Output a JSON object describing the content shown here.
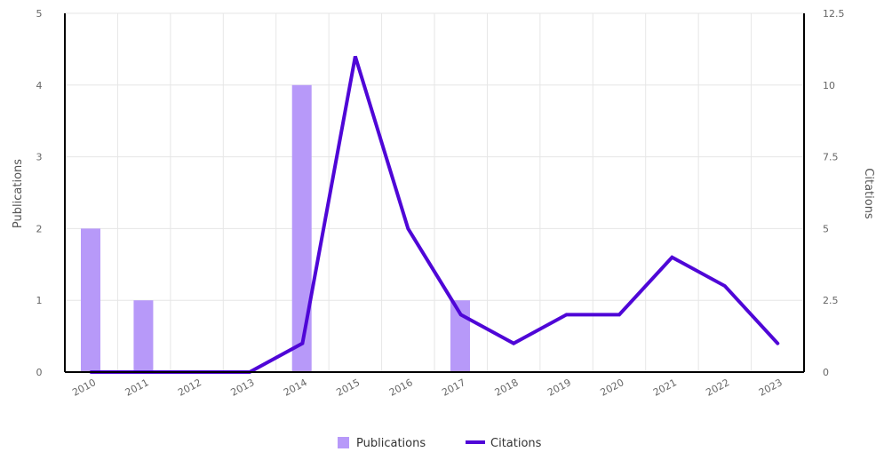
{
  "chart_data": {
    "type": "bar+line",
    "categories": [
      "2010",
      "2011",
      "2012",
      "2013",
      "2014",
      "2015",
      "2016",
      "2017",
      "2018",
      "2019",
      "2020",
      "2021",
      "2022",
      "2023"
    ],
    "series": [
      {
        "name": "Publications",
        "type": "bar",
        "axis": "left",
        "color": "#b799f9",
        "values": [
          2,
          1,
          0,
          0,
          4,
          0,
          0,
          1,
          0,
          0,
          0,
          0,
          0,
          0
        ]
      },
      {
        "name": "Citations",
        "type": "line",
        "axis": "right",
        "color": "#4f06d7",
        "values": [
          0,
          0,
          0,
          0,
          1,
          11,
          5,
          2,
          1,
          2,
          2,
          4,
          3,
          1
        ]
      }
    ],
    "y_left": {
      "label": "Publications",
      "min": 0,
      "max": 5,
      "ticks": [
        "0",
        "1",
        "2",
        "3",
        "4",
        "5"
      ]
    },
    "y_right": {
      "label": "Citations",
      "min": 0,
      "max": 12.5,
      "ticks": [
        "0",
        "2.5",
        "5",
        "7.5",
        "10",
        "12.5"
      ]
    },
    "grid": true,
    "legend": "bottom-center"
  }
}
